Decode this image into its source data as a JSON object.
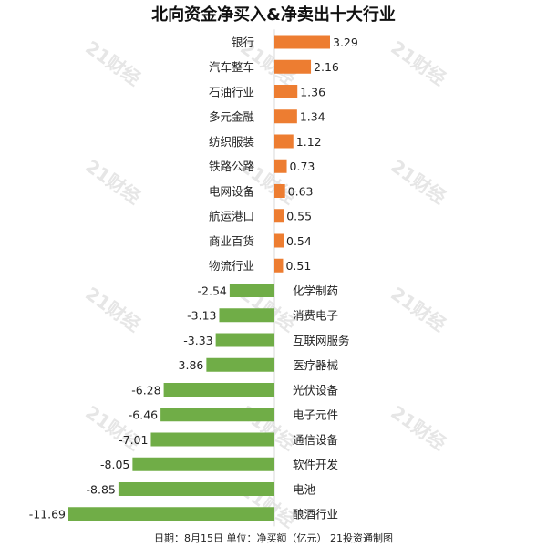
{
  "chart_data": {
    "type": "bar",
    "orientation": "horizontal",
    "title": "北向资金净买入&净卖出十大行业",
    "categories": [
      "银行",
      "汽车整车",
      "石油行业",
      "多元金融",
      "纺织服装",
      "铁路公路",
      "电网设备",
      "航运港口",
      "商业百货",
      "物流行业",
      "化学制药",
      "消费电子",
      "互联网服务",
      "医疗器械",
      "光伏设备",
      "电子元件",
      "通信设备",
      "软件开发",
      "电池",
      "酿酒行业"
    ],
    "values": [
      3.29,
      2.16,
      1.36,
      1.34,
      1.12,
      0.73,
      0.63,
      0.55,
      0.54,
      0.51,
      -2.54,
      -3.13,
      -3.33,
      -3.86,
      -6.28,
      -6.46,
      -7.01,
      -8.05,
      -8.85,
      -11.69
    ],
    "value_labels": [
      "3.29",
      "2.16",
      "1.36",
      "1.34",
      "1.12",
      "0.73",
      "0.63",
      "0.55",
      "0.54",
      "0.51",
      "-2.54",
      "-3.13",
      "-3.33",
      "-3.86",
      "-6.28",
      "-6.46",
      "-7.01",
      "-8.05",
      "-8.85",
      "-11.69"
    ],
    "xlim": [
      -11.69,
      3.29
    ],
    "grid": false,
    "legend": "none",
    "colors": {
      "positive": "#ED7D31",
      "negative": "#70AD47"
    },
    "footer": "日期：8月15日 单位：净买额（亿元） 21投资通制图",
    "watermark": "21财经"
  }
}
